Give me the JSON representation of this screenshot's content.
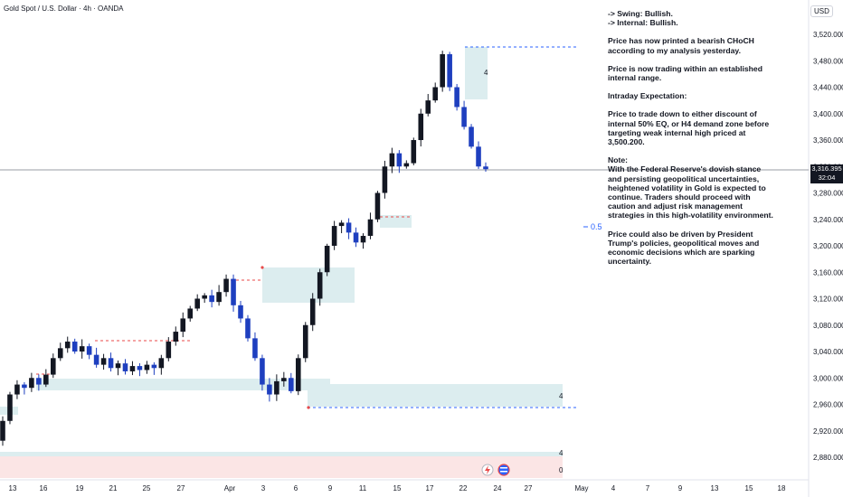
{
  "header": {
    "symbol": "Gold Spot / U.S. Dollar · 4h · OANDA",
    "currency": "USD"
  },
  "price_badge": {
    "price": "3,316.395",
    "countdown": "32:04"
  },
  "fib_label": "0.5",
  "zone_labels": [
    "4",
    "4",
    "4",
    "0"
  ],
  "notes": [
    "-> Swing:  Bullish.",
    "-> Internal:  Bullish.",
    "Price has now printed a bearish CHoCH according to my analysis yesterday.",
    "Price is now trading within an established internal range.",
    "Intraday Expectation:",
    "Price to trade down to either discount of internal 50% EQ, or H4 demand zone before targeting weak internal high priced at 3,500.200.",
    "Note:",
    "With the Federal Reserve's dovish stance and persisting geopolitical uncertainties, heightened volatility in Gold is expected to continue. Traders should proceed with caution and adjust risk management strategies in this high-volatility environment.",
    "Price could also be driven by President Trump's policies, geopolitical moves and economic decisions which are sparking uncertainty."
  ],
  "colors": {
    "bull": "#131722",
    "bear": "#1e3fbf",
    "zone": "#d8ecec",
    "pink": "#f9dede",
    "red_dash": "#e84a4a",
    "blue_dash": "#2962ff"
  },
  "chart_data": {
    "type": "candlestick",
    "y_ticks": [
      "3,520.000",
      "3,480.000",
      "3,440.000",
      "3,400.000",
      "3,360.000",
      "3,320.000",
      "3,280.000",
      "3,240.000",
      "3,200.000",
      "3,160.000",
      "3,120.000",
      "3,080.000",
      "3,040.000",
      "3,000.000",
      "2,960.000",
      "2,920.000",
      "2,880.000"
    ],
    "y_tick_values": [
      3520,
      3480,
      3440,
      3400,
      3360,
      3320,
      3280,
      3240,
      3200,
      3160,
      3120,
      3080,
      3040,
      3000,
      2960,
      2920,
      2880
    ],
    "ylim": [
      2867,
      3535
    ],
    "x_ticks": [
      "13",
      "16",
      "19",
      "21",
      "25",
      "27",
      "Apr",
      "3",
      "6",
      "9",
      "11",
      "15",
      "17",
      "22",
      "24",
      "27",
      "May",
      "4",
      "7",
      "9",
      "13",
      "15",
      "18"
    ],
    "current_price": 3316.395,
    "key_levels": {
      "weak_high": 3500.2,
      "weak_low": 2955
    },
    "price_path": [
      [
        2905,
        2935
      ],
      [
        2935,
        2975
      ],
      [
        2975,
        2990
      ],
      [
        2990,
        2985
      ],
      [
        2985,
        3000
      ],
      [
        3000,
        2990
      ],
      [
        2990,
        3005
      ],
      [
        3005,
        3030
      ],
      [
        3030,
        3045
      ],
      [
        3045,
        3055
      ],
      [
        3055,
        3040
      ],
      [
        3040,
        3048
      ],
      [
        3048,
        3035
      ],
      [
        3035,
        3020
      ],
      [
        3020,
        3030
      ],
      [
        3030,
        3015
      ],
      [
        3015,
        3022
      ],
      [
        3022,
        3010
      ],
      [
        3010,
        3018
      ],
      [
        3018,
        3012
      ],
      [
        3012,
        3020
      ],
      [
        3020,
        3015
      ],
      [
        3015,
        3030
      ],
      [
        3030,
        3055
      ],
      [
        3055,
        3070
      ],
      [
        3070,
        3090
      ],
      [
        3090,
        3105
      ],
      [
        3105,
        3120
      ],
      [
        3120,
        3125
      ],
      [
        3125,
        3115
      ],
      [
        3115,
        3130
      ],
      [
        3130,
        3150
      ],
      [
        3150,
        3110
      ],
      [
        3110,
        3090
      ],
      [
        3090,
        3060
      ],
      [
        3060,
        3030
      ],
      [
        3030,
        2990
      ],
      [
        2990,
        2975
      ],
      [
        2975,
        2995
      ],
      [
        2995,
        3000
      ],
      [
        3000,
        2980
      ],
      [
        2980,
        3030
      ],
      [
        3030,
        3080
      ],
      [
        3080,
        3120
      ],
      [
        3120,
        3160
      ],
      [
        3160,
        3200
      ],
      [
        3200,
        3230
      ],
      [
        3230,
        3235
      ],
      [
        3235,
        3220
      ],
      [
        3220,
        3205
      ],
      [
        3205,
        3215
      ],
      [
        3215,
        3240
      ],
      [
        3240,
        3280
      ],
      [
        3280,
        3320
      ],
      [
        3320,
        3340
      ],
      [
        3340,
        3320
      ],
      [
        3320,
        3325
      ],
      [
        3325,
        3360
      ],
      [
        3360,
        3400
      ],
      [
        3400,
        3420
      ],
      [
        3420,
        3440
      ],
      [
        3440,
        3490
      ],
      [
        3490,
        3440
      ],
      [
        3440,
        3410
      ],
      [
        3410,
        3380
      ],
      [
        3380,
        3350
      ],
      [
        3350,
        3320
      ],
      [
        3320,
        3316
      ]
    ]
  }
}
